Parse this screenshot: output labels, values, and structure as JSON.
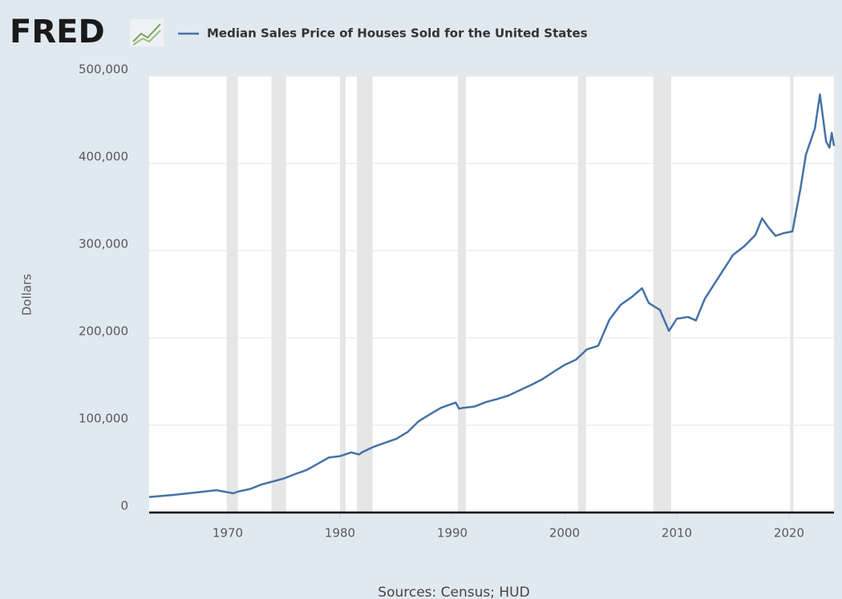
{
  "chart_data": {
    "type": "line",
    "logo": "FRED",
    "ylabel": "Dollars",
    "source": "Sources: Census; HUD",
    "xlim": [
      1963,
      2024
    ],
    "xticks": [
      1970,
      1980,
      1990,
      2000,
      2010,
      2020
    ],
    "ylim": [
      0,
      500000
    ],
    "yticks": [
      0,
      {
        "value": 100000,
        "label": "100,000"
      },
      {
        "value": 200000,
        "label": "200,000"
      },
      {
        "value": 300000,
        "label": "300,000"
      },
      {
        "value": 400000,
        "label": "400,000"
      },
      {
        "value": 500000,
        "label": "500,000"
      }
    ],
    "grid": true,
    "recessions": [
      [
        1969.9,
        1970.9
      ],
      [
        1973.9,
        1975.2
      ],
      [
        1980.0,
        1980.5
      ],
      [
        1981.5,
        1982.9
      ],
      [
        1990.5,
        1991.2
      ],
      [
        2001.2,
        2001.9
      ],
      [
        2007.9,
        2009.5
      ],
      [
        2020.1,
        2020.4
      ]
    ],
    "recession_color": "#e6e6e6",
    "series": [
      {
        "name": "Median Sales Price of Houses Sold for the United States",
        "color": "#4572a7",
        "x": [
          1963,
          1965,
          1967,
          1969,
          1970.5,
          1971,
          1972,
          1973,
          1974,
          1975,
          1976,
          1977,
          1978,
          1979,
          1980,
          1981,
          1981.7,
          1982,
          1983,
          1984,
          1985,
          1986,
          1987,
          1988,
          1989,
          1990.3,
          1990.6,
          1991,
          1992,
          1993,
          1994,
          1995,
          1996,
          1997,
          1998,
          1999,
          2000,
          2001,
          2002,
          2003,
          2004,
          2005,
          2006,
          2006.9,
          2007.5,
          2008.5,
          2009.3,
          2010,
          2011,
          2011.7,
          2012.5,
          2013.5,
          2014.5,
          2015,
          2016,
          2017,
          2017.6,
          2018.2,
          2018.8,
          2019.5,
          2020.3,
          2021,
          2021.5,
          2022.3,
          2022.75,
          2023.3,
          2023.6,
          2023.8,
          2024
        ],
        "values": [
          17800,
          20000,
          22700,
          25600,
          22000,
          24300,
          27000,
          32000,
          35500,
          39000,
          44000,
          48500,
          55700,
          62900,
          64600,
          68900,
          66500,
          69300,
          75300,
          79900,
          84300,
          92000,
          104500,
          112500,
          120000,
          126000,
          119000,
          120000,
          121500,
          126500,
          130000,
          133900,
          140000,
          146000,
          152500,
          161000,
          169000,
          175000,
          187000,
          191000,
          221000,
          238000,
          247000,
          257000,
          240000,
          232000,
          208000,
          222000,
          224000,
          220000,
          245000,
          265000,
          285000,
          295000,
          305000,
          318000,
          337000,
          326000,
          317000,
          320000,
          322000,
          370000,
          410000,
          440000,
          479000,
          425000,
          418000,
          435000,
          420000
        ]
      }
    ]
  }
}
